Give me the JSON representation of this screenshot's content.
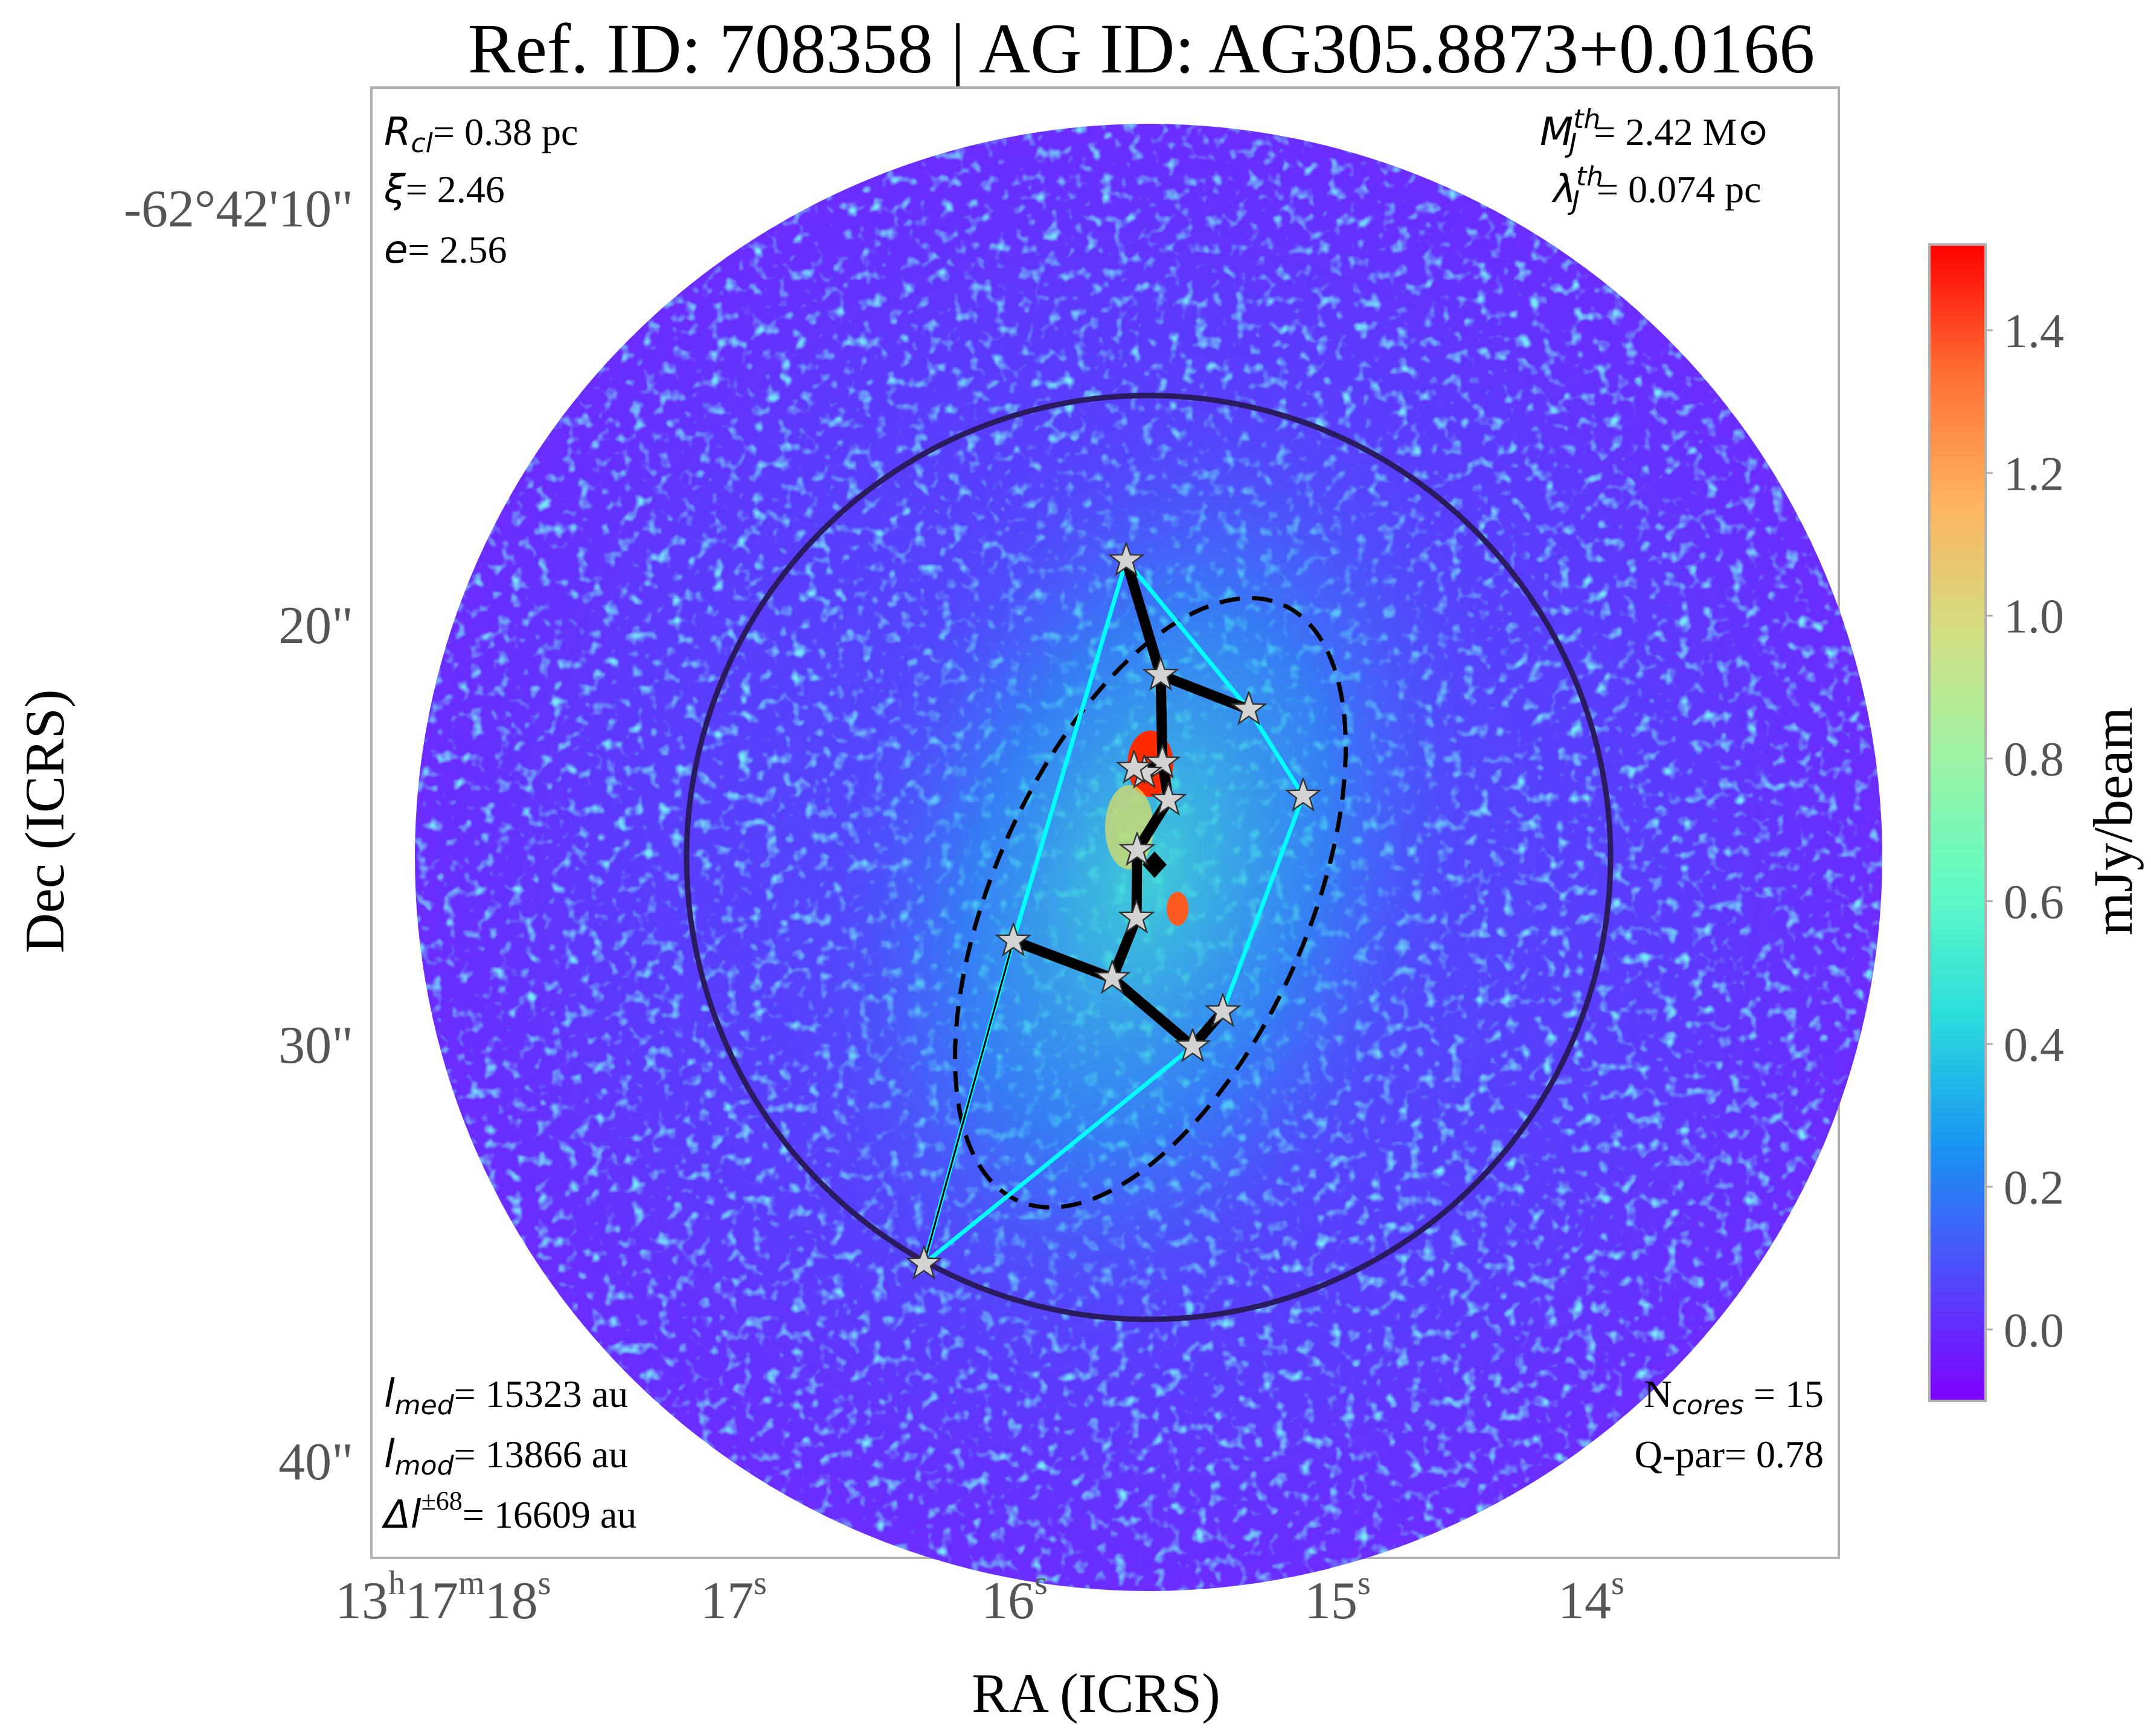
{
  "title": "Ref. ID: 708358 | AG ID: AG305.8873+0.0166",
  "axes": {
    "xlabel": "RA (ICRS)",
    "ylabel": "Dec (ICRS)",
    "xticks": [
      {
        "main": "13",
        "sup1": "h",
        "mid": "17",
        "sup2": "m",
        "end": "18",
        "sup3": "s"
      },
      {
        "main": "17",
        "sup": "s"
      },
      {
        "main": "16",
        "sup": "s"
      },
      {
        "main": "15",
        "sup": "s"
      },
      {
        "main": "14",
        "sup": "s"
      }
    ],
    "yticks": [
      "-62°42'10\"",
      "20\"",
      "30\"",
      "40\""
    ]
  },
  "annotations": {
    "rcl": {
      "sym": "R",
      "sub": "cl",
      "value": "= 0.38 pc"
    },
    "xi": {
      "sym": "ξ",
      "value": "= 2.46"
    },
    "e": {
      "sym": "e",
      "value": "= 2.56"
    },
    "mj": {
      "sym": "M",
      "sub": "J",
      "sup": "th",
      "value": "= 2.42 M",
      "unit": "⊙"
    },
    "lj": {
      "sym": "λ",
      "sub": "J",
      "sup": "th",
      "value": "= 0.074 pc"
    },
    "lmed": {
      "sym": "l",
      "sub": "med",
      "value": "= 15323 au"
    },
    "lmod": {
      "sym": "l",
      "sub": "mod",
      "value": "= 13866 au"
    },
    "dl": {
      "sym": "Δl",
      "sup": "±68",
      "value": "= 16609 au"
    },
    "ncores": {
      "sym": "N",
      "sub": "cores",
      "value": " = 15"
    },
    "qpar": {
      "text": "Q-par= 0.78"
    }
  },
  "colorbar": {
    "label": "mJy/beam",
    "ticks": [
      "1.4",
      "1.2",
      "1.0",
      "0.8",
      "0.6",
      "0.4",
      "0.2",
      "0.0"
    ],
    "colormap": "rainbow",
    "colors": [
      "#8000ff",
      "#4f4cfb",
      "#1995f2",
      "#2adddd",
      "#62fbc4",
      "#9cf3a4",
      "#d4dd80",
      "#ffb360",
      "#ff6e34",
      "#ff0000"
    ]
  },
  "colors": {
    "mst": "#000000",
    "hull": "#00ffff",
    "circle": "#2a1a5e",
    "ellipse": "#000000",
    "core": "#d3d3d3"
  }
}
